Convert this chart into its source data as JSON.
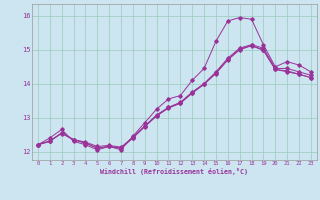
{
  "background_color": "#cce5f0",
  "grid_color": "#99ccbb",
  "line_color": "#993399",
  "xlim": [
    -0.5,
    23.5
  ],
  "ylim": [
    11.75,
    16.35
  ],
  "xticks": [
    0,
    1,
    2,
    3,
    4,
    5,
    6,
    7,
    8,
    9,
    10,
    11,
    12,
    13,
    14,
    15,
    16,
    17,
    18,
    19,
    20,
    21,
    22,
    23
  ],
  "yticks": [
    12,
    13,
    14,
    15,
    16
  ],
  "xlabel": "Windchill (Refroidissement éolien,°C)",
  "line1_x": [
    0,
    1,
    2,
    3,
    4,
    5,
    6,
    7,
    8,
    9,
    10,
    11,
    12,
    13,
    14,
    15,
    16,
    17,
    18,
    19,
    20,
    21,
    22,
    23
  ],
  "line1_y": [
    12.2,
    12.4,
    12.65,
    12.3,
    12.2,
    12.05,
    12.15,
    12.05,
    12.45,
    12.85,
    13.25,
    13.55,
    13.65,
    14.1,
    14.45,
    15.25,
    15.85,
    15.95,
    15.9,
    15.15,
    14.5,
    14.65,
    14.55,
    14.35
  ],
  "line2_x": [
    0,
    1,
    2,
    3,
    4,
    5,
    6,
    7,
    8,
    9,
    10,
    11,
    12,
    13,
    14,
    15,
    16,
    17,
    18,
    19,
    20,
    21,
    22,
    23
  ],
  "line2_y": [
    12.2,
    12.3,
    12.55,
    12.35,
    12.25,
    12.1,
    12.15,
    12.1,
    12.4,
    12.75,
    13.05,
    13.3,
    13.45,
    13.75,
    14.0,
    14.35,
    14.75,
    15.05,
    15.15,
    15.05,
    14.45,
    14.45,
    14.35,
    14.25
  ],
  "line3_x": [
    0,
    1,
    2,
    3,
    4,
    5,
    6,
    7,
    8,
    9,
    10,
    11,
    12,
    13,
    14,
    15,
    16,
    17,
    18,
    19,
    20,
    21,
    22,
    23
  ],
  "line3_y": [
    12.2,
    12.3,
    12.55,
    12.35,
    12.25,
    12.1,
    12.15,
    12.1,
    12.4,
    12.73,
    13.05,
    13.28,
    13.42,
    13.72,
    13.98,
    14.3,
    14.7,
    15.0,
    15.12,
    14.98,
    14.42,
    14.38,
    14.28,
    14.18
  ],
  "line4_x": [
    0,
    1,
    2,
    3,
    4,
    5,
    6,
    7,
    8,
    9,
    10,
    11,
    12,
    13,
    14,
    15,
    16,
    17,
    18,
    19,
    20,
    21,
    22,
    23
  ],
  "line4_y": [
    12.2,
    12.32,
    12.53,
    12.35,
    12.28,
    12.15,
    12.18,
    12.13,
    12.42,
    12.75,
    13.08,
    13.3,
    13.44,
    13.74,
    14.0,
    14.32,
    14.72,
    15.02,
    15.13,
    15.0,
    14.42,
    14.35,
    14.28,
    14.18
  ]
}
